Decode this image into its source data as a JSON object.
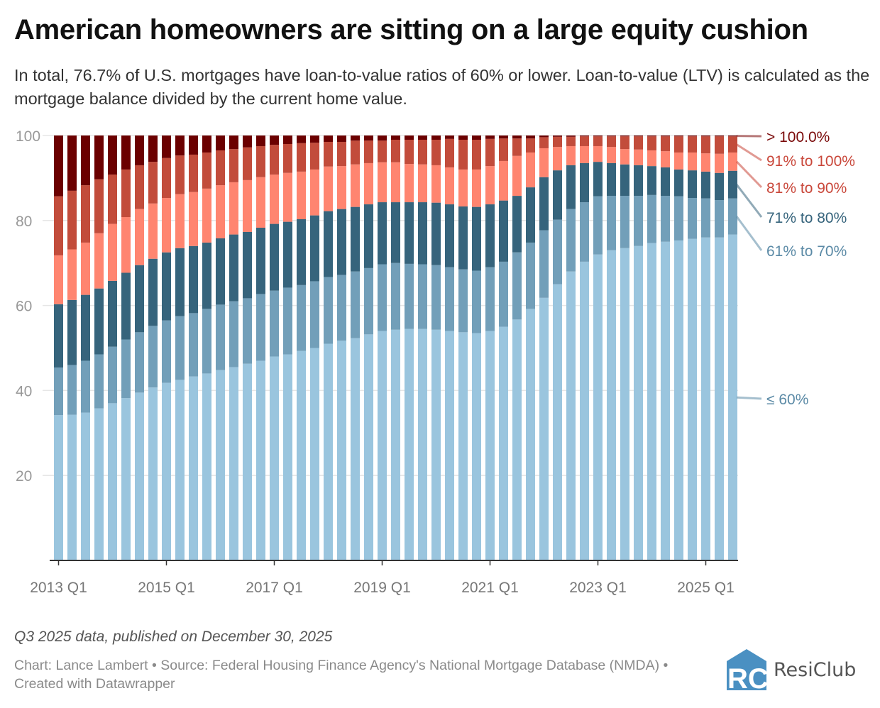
{
  "title": "American homeowners are sitting on a large equity cushion",
  "subtitle": "In total, 76.7% of U.S. mortgages have loan-to-value ratios of 60% or lower. Loan-to-value (LTV) is calculated as the mortgage balance divided by the current home value.",
  "footer": {
    "note": "Q3 2025 data, published on December 30, 2025",
    "source": "Chart: Lance Lambert • Source: Federal Housing Finance Agency's National Mortgage Database (NMDA) • Created with Datawrapper",
    "logo_text": "ResiClub"
  },
  "chart_data": {
    "type": "bar",
    "stacked": true,
    "ylim": [
      0,
      100
    ],
    "yticks": [
      "20",
      "40",
      "60",
      "80",
      "100"
    ],
    "grid": true,
    "legend_placement": "right (direct labels)",
    "xtick_labels": [
      "2013 Q1",
      "2015 Q1",
      "2017 Q1",
      "2019 Q1",
      "2021 Q1",
      "2023 Q1",
      "2025 Q1"
    ],
    "categories": [
      "2013 Q1",
      "2013 Q2",
      "2013 Q3",
      "2013 Q4",
      "2014 Q1",
      "2014 Q2",
      "2014 Q3",
      "2014 Q4",
      "2015 Q1",
      "2015 Q2",
      "2015 Q3",
      "2015 Q4",
      "2016 Q1",
      "2016 Q2",
      "2016 Q3",
      "2016 Q4",
      "2017 Q1",
      "2017 Q2",
      "2017 Q3",
      "2017 Q4",
      "2018 Q1",
      "2018 Q2",
      "2018 Q3",
      "2018 Q4",
      "2019 Q1",
      "2019 Q2",
      "2019 Q3",
      "2019 Q4",
      "2020 Q1",
      "2020 Q2",
      "2020 Q3",
      "2020 Q4",
      "2021 Q1",
      "2021 Q2",
      "2021 Q3",
      "2021 Q4",
      "2022 Q1",
      "2022 Q2",
      "2022 Q3",
      "2022 Q4",
      "2023 Q1",
      "2023 Q2",
      "2023 Q3",
      "2023 Q4",
      "2024 Q1",
      "2024 Q2",
      "2024 Q3",
      "2024 Q4",
      "2025 Q1",
      "2025 Q2",
      "2025 Q3"
    ],
    "series": [
      {
        "name": "≤ 60%",
        "color": "#9ac5de",
        "label_color": "#5b8aa6",
        "values": [
          34.2,
          34.3,
          34.8,
          35.8,
          37.0,
          38.2,
          39.5,
          40.7,
          41.8,
          42.5,
          43.3,
          44.0,
          44.8,
          45.5,
          46.3,
          47.0,
          48.0,
          48.5,
          49.3,
          50.0,
          51.0,
          51.7,
          52.3,
          53.2,
          54.0,
          54.3,
          54.5,
          54.5,
          54.3,
          54.0,
          53.7,
          53.5,
          54.0,
          55.0,
          56.7,
          59.2,
          61.8,
          65.0,
          68.0,
          70.3,
          72.0,
          73.0,
          73.5,
          74.0,
          74.7,
          75.0,
          75.3,
          75.7,
          76.0,
          76.0,
          76.7
        ]
      },
      {
        "name": "61% to 70%",
        "color": "#729fb9",
        "label_color": "#5b8aa6",
        "values": [
          11.2,
          11.7,
          12.2,
          12.7,
          13.3,
          13.8,
          14.2,
          14.5,
          14.7,
          15.0,
          14.9,
          15.2,
          15.4,
          15.5,
          15.4,
          15.7,
          15.5,
          15.7,
          15.5,
          15.7,
          15.7,
          15.5,
          15.7,
          15.6,
          15.7,
          15.7,
          15.3,
          15.2,
          15.2,
          15.0,
          14.8,
          14.7,
          15.0,
          15.3,
          15.8,
          15.6,
          15.9,
          15.2,
          14.7,
          14.0,
          13.7,
          12.8,
          12.3,
          11.8,
          11.3,
          10.8,
          10.4,
          9.6,
          9.2,
          8.8,
          8.5
        ]
      },
      {
        "name": "71% to 80%",
        "color": "#36647c",
        "label_color": "#36647c",
        "values": [
          14.9,
          15.3,
          15.5,
          15.5,
          15.5,
          15.7,
          15.8,
          15.8,
          16.0,
          16.0,
          15.8,
          15.6,
          15.6,
          15.7,
          15.6,
          15.6,
          15.7,
          15.5,
          15.5,
          15.5,
          15.5,
          15.5,
          15.2,
          15.0,
          14.6,
          14.3,
          14.5,
          14.6,
          14.7,
          14.8,
          14.8,
          15.0,
          14.8,
          14.4,
          13.3,
          13.0,
          12.5,
          11.6,
          10.3,
          9.2,
          8.1,
          7.7,
          7.4,
          7.2,
          6.8,
          6.7,
          6.3,
          6.5,
          6.3,
          6.4,
          6.5
        ]
      },
      {
        "name": "81% to 90%",
        "color": "#ff8570",
        "label_color": "#c9473a",
        "values": [
          11.5,
          11.9,
          12.3,
          13.0,
          13.4,
          13.1,
          13.2,
          13.0,
          12.8,
          12.7,
          12.7,
          12.7,
          12.5,
          12.3,
          12.2,
          11.9,
          11.6,
          11.5,
          11.2,
          10.8,
          10.5,
          10.1,
          10.0,
          9.7,
          9.4,
          9.4,
          9.0,
          8.9,
          8.8,
          8.7,
          8.7,
          8.8,
          9.0,
          9.3,
          9.4,
          8.2,
          6.8,
          5.5,
          4.5,
          4.0,
          3.7,
          3.8,
          3.6,
          3.7,
          3.7,
          3.8,
          4.0,
          4.2,
          4.3,
          4.5,
          4.3
        ]
      },
      {
        "name": "91% to 100%",
        "color": "#c24c3b",
        "label_color": "#c9473a",
        "values": [
          13.9,
          13.8,
          13.5,
          12.7,
          11.6,
          11.2,
          10.3,
          9.8,
          9.4,
          9.1,
          8.8,
          8.5,
          8.2,
          7.8,
          7.7,
          7.3,
          7.0,
          6.8,
          6.7,
          6.3,
          5.8,
          5.7,
          5.6,
          5.3,
          5.1,
          5.3,
          5.7,
          5.8,
          6.0,
          6.7,
          7.0,
          7.0,
          6.4,
          5.3,
          4.1,
          3.3,
          2.6,
          2.4,
          2.2,
          2.3,
          2.3,
          2.5,
          3.0,
          3.1,
          3.3,
          3.5,
          3.8,
          3.8,
          4.0,
          4.1,
          3.8
        ]
      },
      {
        "name": "> 100.0%",
        "color": "#6b0000",
        "label_color": "#7a0a0a",
        "values": [
          14.3,
          13.0,
          11.7,
          10.3,
          9.2,
          8.0,
          7.0,
          6.2,
          5.3,
          4.7,
          4.5,
          4.0,
          3.5,
          3.2,
          2.8,
          2.5,
          2.2,
          2.0,
          1.8,
          1.7,
          1.5,
          1.5,
          1.2,
          1.2,
          1.2,
          1.0,
          1.0,
          1.0,
          1.0,
          0.8,
          1.0,
          1.0,
          0.8,
          0.7,
          0.7,
          0.7,
          0.4,
          0.3,
          0.3,
          0.2,
          0.2,
          0.2,
          0.2,
          0.2,
          0.2,
          0.2,
          0.2,
          0.2,
          0.2,
          0.2,
          0.2
        ]
      }
    ]
  }
}
